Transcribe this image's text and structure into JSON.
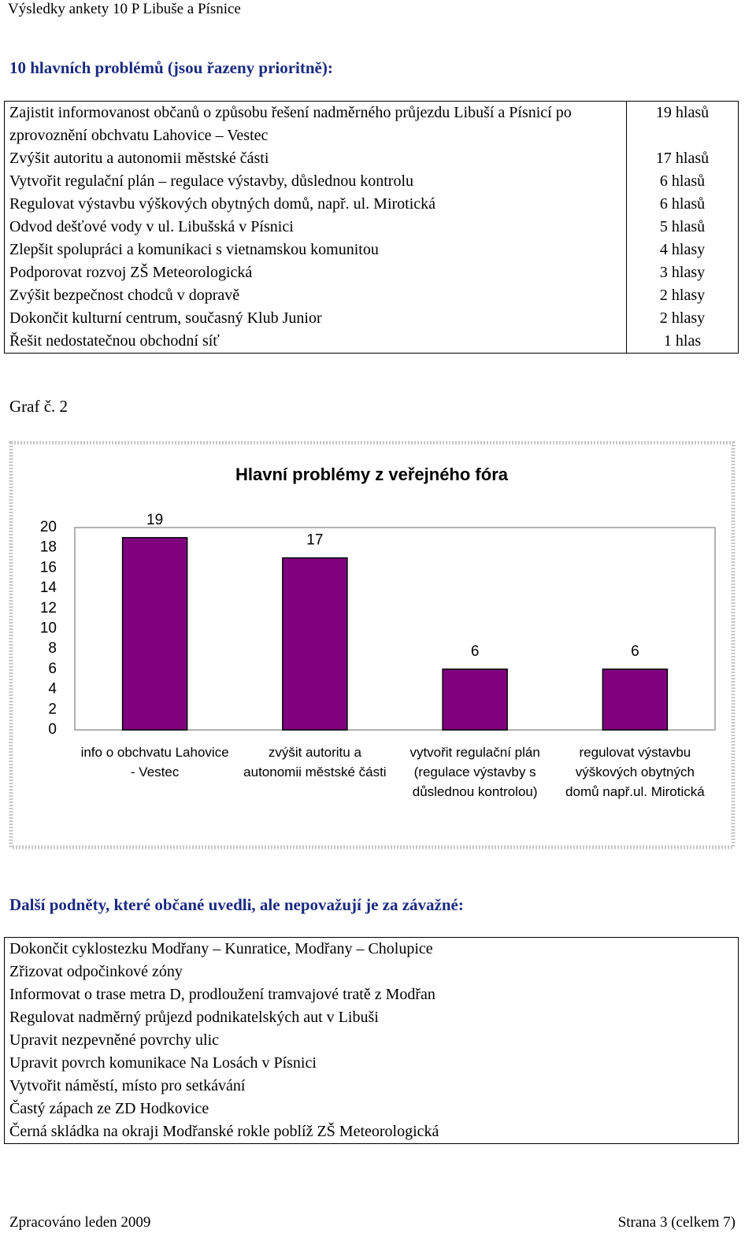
{
  "header": {
    "title": "Výsledky ankety 10 P Libuše a Písnice"
  },
  "section1": {
    "heading": "10 hlavních problémů (jsou řazeny prioritně):",
    "rows": [
      [
        "Zajistit informovanost občanů o způsobu řešení nadměrného průjezdu Libuší a Písnicí po zprovoznění obchvatu Lahovice – Vestec",
        "19 hlasů"
      ],
      [
        "Zvýšit autoritu a autonomii městské části",
        "17 hlasů"
      ],
      [
        "Vytvořit regulační plán – regulace výstavby, důslednou kontrolu",
        "6 hlasů"
      ],
      [
        "Regulovat výstavbu výškových obytných domů, např. ul. Mirotická",
        "6 hlasů"
      ],
      [
        "Odvod dešťové vody v ul. Libušská v Písnici",
        "5 hlasů"
      ],
      [
        "Zlepšit spolupráci a komunikaci s vietnamskou komunitou",
        "4 hlasy"
      ],
      [
        "Podporovat rozvoj ZŠ Meteorologická",
        "3 hlasy"
      ],
      [
        "Zvýšit bezpečnost chodců v dopravě",
        "2 hlasy"
      ],
      [
        "Dokončit kulturní centrum, současný Klub Junior",
        "2 hlasy"
      ],
      [
        "Řešit nedostatečnou obchodní síť",
        "1 hlas"
      ]
    ]
  },
  "graph_caption": "Graf č. 2",
  "chart_data": {
    "type": "bar",
    "title": "Hlavní problémy z veřejného fóra",
    "categories": [
      "info o obchvatu Lahovice - Vestec",
      "zvýšit autoritu a autonomii městské části",
      "vytvořit regulační plán (regulace výstavby s důslednou kontrolou)",
      "regulovat výstavbu výškových obytných domů např.ul. Mirotická"
    ],
    "values": [
      19,
      17,
      6,
      6
    ],
    "color": "#800080",
    "ylim": [
      0,
      20
    ],
    "yticks": [
      0,
      2,
      4,
      6,
      8,
      10,
      12,
      14,
      16,
      18,
      20
    ],
    "grid": false
  },
  "section2": {
    "heading": "Další podněty, které občané uvedli, ale nepovažují je za závažné:",
    "rows": [
      "Dokončit cyklostezku Modřany – Kunratice, Modřany – Cholupice",
      "Zřizovat odpočinkové zóny",
      "Informovat o trase metra D, prodloužení tramvajové tratě z Modřan",
      "Regulovat nadměrný průjezd podnikatelských aut v Libuši",
      "Upravit nezpevněné povrchy ulic",
      "Upravit povrch komunikace Na Losách v Písnici",
      "Vytvořit náměstí, místo pro setkávání",
      "Častý zápach ze ZD Hodkovice",
      "Černá skládka na okraji Modřanské rokle poblíž ZŠ Meteorologická"
    ]
  },
  "footer": {
    "left": "Zpracováno leden 2009",
    "right": "Strana 3 (celkem 7)"
  }
}
